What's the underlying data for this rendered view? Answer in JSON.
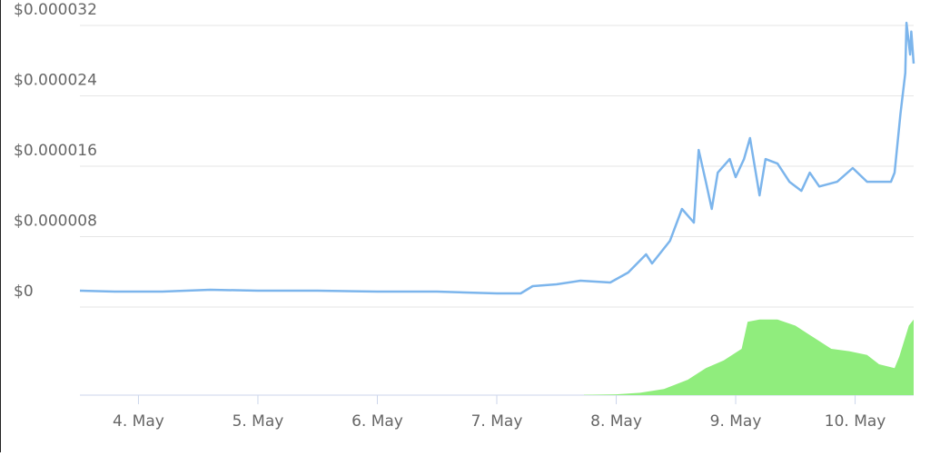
{
  "chart_data": {
    "type": "line",
    "xlim": [
      3.51,
      10.49
    ],
    "xticks": [
      {
        "value": 4,
        "label": "4. May"
      },
      {
        "value": 5,
        "label": "5. May"
      },
      {
        "value": 6,
        "label": "6. May"
      },
      {
        "value": 7,
        "label": "7. May"
      },
      {
        "value": 8,
        "label": "8. May"
      },
      {
        "value": 9,
        "label": "9. May"
      },
      {
        "value": 10,
        "label": "10. May"
      }
    ],
    "ylim": [
      0,
      3.2e-05
    ],
    "yticks": [
      {
        "value": 0,
        "label": "$0"
      },
      {
        "value": 8e-06,
        "label": "$0.000008"
      },
      {
        "value": 1.6e-05,
        "label": "$0.000016"
      },
      {
        "value": 2.4e-05,
        "label": "$0.000024"
      },
      {
        "value": 3.2e-05,
        "label": "$0.000032"
      }
    ],
    "y2lim": [
      0,
      100
    ],
    "grid": true,
    "series": [
      {
        "color": "#7cb5ec",
        "x": [
          3.51,
          3.8,
          4.2,
          4.6,
          5.0,
          5.5,
          6.0,
          6.5,
          7.0,
          7.2,
          7.3,
          7.5,
          7.7,
          7.95,
          8.1,
          8.25,
          8.3,
          8.45,
          8.55,
          8.65,
          8.69,
          8.75,
          8.8,
          8.85,
          8.95,
          9.0,
          9.07,
          9.12,
          9.2,
          9.25,
          9.35,
          9.45,
          9.55,
          9.62,
          9.7,
          9.85,
          9.98,
          10.1,
          10.3,
          10.33,
          10.38,
          10.42,
          10.43,
          10.46,
          10.47,
          10.49
        ],
        "values": [
          1.86e-06,
          1.75e-06,
          1.75e-06,
          1.96e-06,
          1.86e-06,
          1.86e-06,
          1.75e-06,
          1.75e-06,
          1.55e-06,
          1.55e-06,
          2.37e-06,
          2.58e-06,
          2.99e-06,
          2.79e-06,
          3.92e-06,
          5.99e-06,
          4.95e-06,
          7.53e-06,
          1.115e-05,
          9.6e-06,
          1.785e-05,
          1.424e-05,
          1.115e-05,
          1.527e-05,
          1.682e-05,
          1.476e-05,
          1.682e-05,
          1.92e-05,
          1.269e-05,
          1.682e-05,
          1.63e-05,
          1.424e-05,
          1.32e-05,
          1.527e-05,
          1.37e-05,
          1.424e-05,
          1.579e-05,
          1.424e-05,
          1.424e-05,
          1.527e-05,
          2.198e-05,
          2.66e-05,
          3.23e-05,
          2.87e-05,
          3.13e-05,
          2.766e-05
        ]
      },
      {
        "color": "#90ed7d",
        "axis": "y2",
        "x": [
          7.73,
          8.0,
          8.2,
          8.4,
          8.6,
          8.75,
          8.9,
          9.05,
          9.1,
          9.2,
          9.35,
          9.5,
          9.65,
          9.8,
          9.95,
          10.1,
          10.2,
          10.33,
          10.37,
          10.45,
          10.49
        ],
        "values": [
          0.5,
          1,
          3,
          8,
          20,
          35,
          45,
          60,
          95,
          98,
          98,
          90,
          75,
          60,
          57,
          52,
          40,
          35,
          50,
          90,
          98
        ]
      }
    ]
  }
}
